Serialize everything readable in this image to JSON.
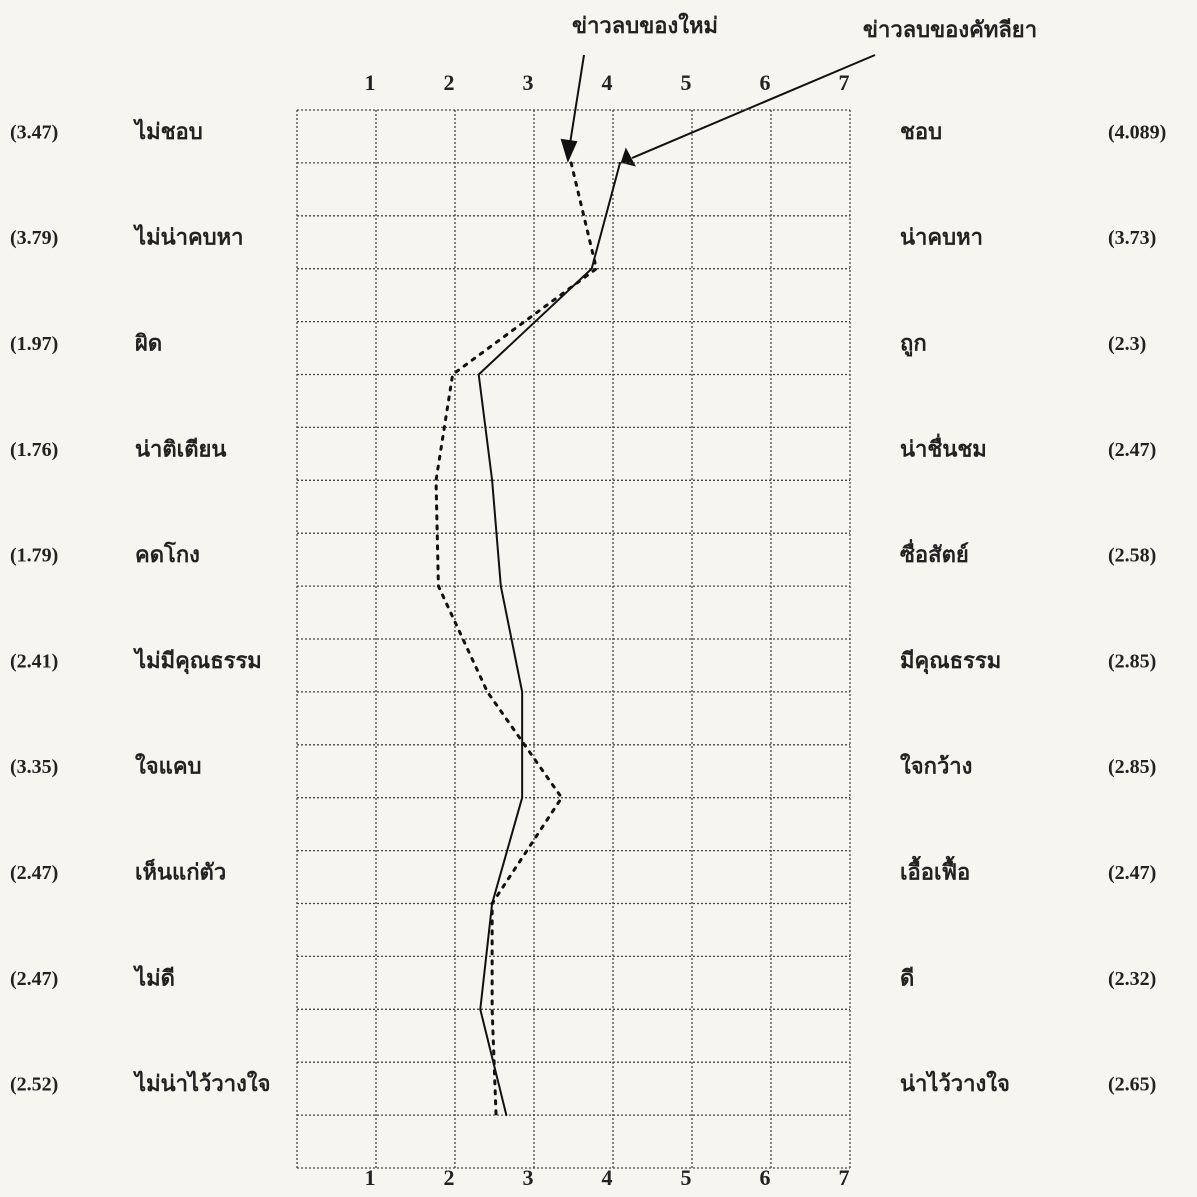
{
  "chart_data": {
    "type": "line",
    "left_labels": [
      "ไม่ชอบ",
      "ไม่น่าคบหา",
      "ผิด",
      "น่าติเตียน",
      "คดโกง",
      "ไม่มีคุณธรรม",
      "ใจแคบ",
      "เห็นแก่ตัว",
      "ไม่ดี",
      "ไม่น่าไว้วางใจ"
    ],
    "right_labels": [
      "ชอบ",
      "น่าคบหา",
      "ถูก",
      "น่าชื่นชม",
      "ซื่อสัตย์",
      "มีคุณธรรม",
      "ใจกว้าง",
      "เอื้อเฟื้อ",
      "ดี",
      "น่าไว้วางใจ"
    ],
    "series": [
      {
        "name": "ข่าวลบของใหม่",
        "color": "#111",
        "style": "dotted",
        "side": "left",
        "values": [
          3.47,
          3.79,
          1.97,
          1.76,
          1.79,
          2.41,
          3.35,
          2.47,
          2.47,
          2.52
        ],
        "value_labels": [
          "(3.47)",
          "(3.79)",
          "(1.97)",
          "(1.76)",
          "(1.79)",
          "(2.41)",
          "(3.35)",
          "(2.47)",
          "(2.47)",
          "(2.52)"
        ]
      },
      {
        "name": "ข่าวลบของคัทลียา",
        "color": "#111",
        "style": "solid",
        "side": "right",
        "values": [
          4.089,
          3.73,
          2.3,
          2.47,
          2.58,
          2.85,
          2.85,
          2.47,
          2.32,
          2.65
        ],
        "value_labels": [
          "(4.089)",
          "(3.73)",
          "(2.3)",
          "(2.47)",
          "(2.58)",
          "(2.85)",
          "(2.85)",
          "(2.47)",
          "(2.32)",
          "(2.65)"
        ]
      }
    ],
    "xlim": [
      0,
      7
    ],
    "xticks": [
      1,
      2,
      3,
      4,
      5,
      6,
      7
    ],
    "grid": true
  }
}
